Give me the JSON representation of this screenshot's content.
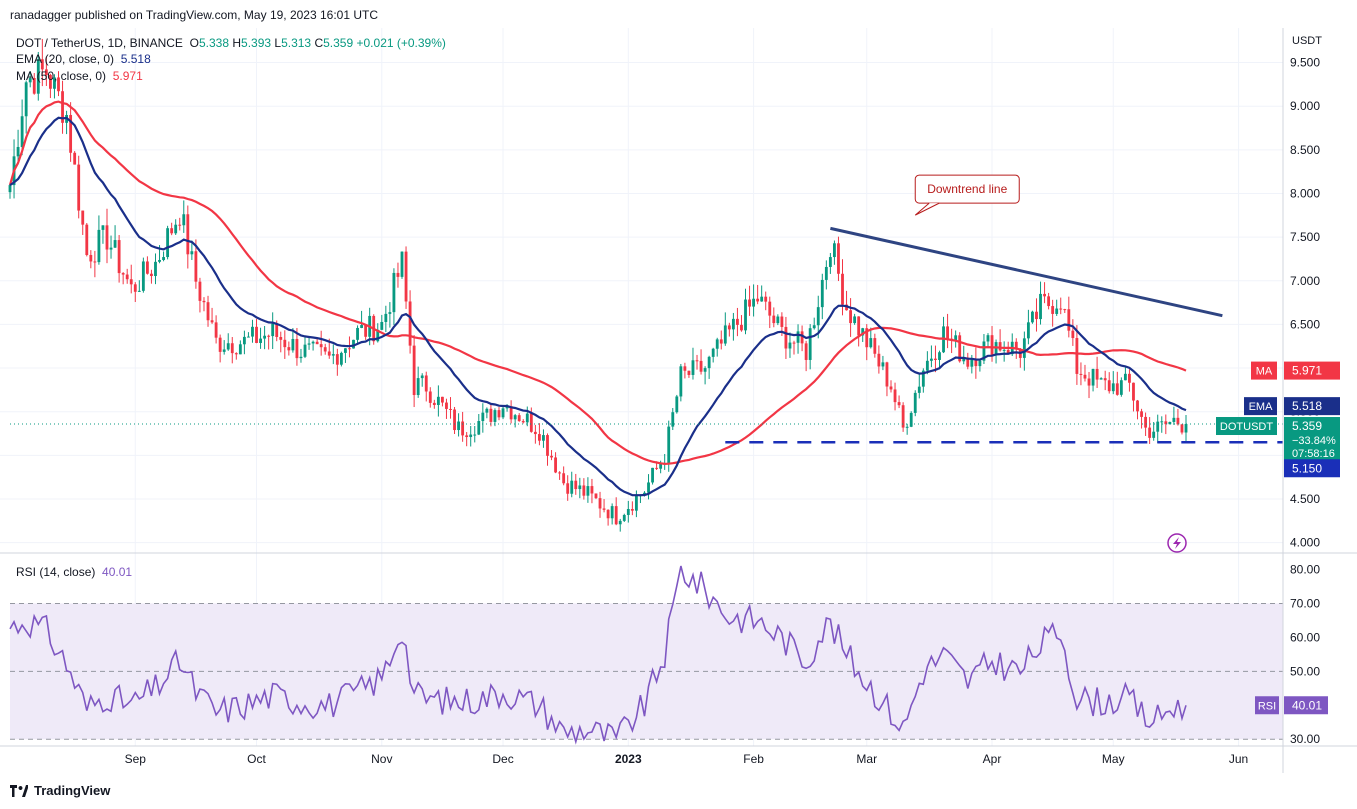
{
  "publisher": "ranadagger published on TradingView.com, May 19, 2023 16:01 UTC",
  "legend": {
    "symbol": "DOT / TetherUS, 1D, BINANCE",
    "open_label": "O",
    "open": "5.338",
    "high_label": "H",
    "high": "5.393",
    "low_label": "L",
    "low": "5.313",
    "close_label": "C",
    "close": "5.359",
    "change": "+0.021 (+0.39%)",
    "ema_label": "EMA (20, close, 0)",
    "ema_value": "5.518",
    "ma_label": "MA (50, close, 0)",
    "ma_value": "5.971",
    "rsi_label": "RSI (14, close)",
    "rsi_value": "40.01"
  },
  "footer": {
    "brand": "TradingView"
  },
  "colors": {
    "up": "#089981",
    "down": "#f23645",
    "ema": "#1a2f8a",
    "ma": "#f23645",
    "rsi": "#7e57c2",
    "rsi_band": "#efeaf8",
    "trendline": "#2e4482",
    "support": "#1a2fb8"
  },
  "chart_data": [
    {
      "type": "candlestick",
      "title": "DOT / TetherUS, 1D, BINANCE",
      "currency_label": "USDT",
      "y_ticks": [
        "4.000",
        "4.500",
        "5.000",
        "5.500",
        "6.000",
        "6.500",
        "7.000",
        "7.500",
        "8.000",
        "8.500",
        "9.000",
        "9.500"
      ],
      "ylim": [
        3.95,
        9.85
      ],
      "x_labels": [
        "Sep",
        "Oct",
        "Nov",
        "Dec",
        "2023",
        "Feb",
        "Mar",
        "Apr",
        "May",
        "Jun"
      ],
      "x_label_dates": [
        "2022-09-01",
        "2022-10-01",
        "2022-11-01",
        "2022-12-01",
        "2023-01-01",
        "2023-02-01",
        "2023-03-01",
        "2023-04-01",
        "2023-05-01",
        "2023-06-01"
      ],
      "x_start": "2022-08-01",
      "x_end": "2023-06-12",
      "series": [
        {
          "name": "EMA",
          "value": "5.518"
        },
        {
          "name": "MA",
          "value": "5.971"
        }
      ],
      "price_waypoints": [
        [
          "2022-08-01",
          8.1
        ],
        [
          "2022-08-05",
          9.3
        ],
        [
          "2022-08-10",
          9.4
        ],
        [
          "2022-08-15",
          8.9
        ],
        [
          "2022-08-20",
          7.3
        ],
        [
          "2022-08-25",
          7.5
        ],
        [
          "2022-08-31",
          6.9
        ],
        [
          "2022-09-06",
          7.2
        ],
        [
          "2022-09-12",
          7.8
        ],
        [
          "2022-09-16",
          7.0
        ],
        [
          "2022-09-21",
          6.3
        ],
        [
          "2022-09-28",
          6.3
        ],
        [
          "2022-10-05",
          6.4
        ],
        [
          "2022-10-12",
          6.2
        ],
        [
          "2022-10-19",
          6.1
        ],
        [
          "2022-10-26",
          6.4
        ],
        [
          "2022-11-01",
          6.5
        ],
        [
          "2022-11-06",
          7.2
        ],
        [
          "2022-11-09",
          5.8
        ],
        [
          "2022-11-12",
          5.8
        ],
        [
          "2022-11-20",
          5.3
        ],
        [
          "2022-11-26",
          5.4
        ],
        [
          "2022-12-01",
          5.6
        ],
        [
          "2022-12-10",
          5.3
        ],
        [
          "2022-12-16",
          4.7
        ],
        [
          "2022-12-22",
          4.55
        ],
        [
          "2022-12-29",
          4.3
        ],
        [
          "2023-01-05",
          4.6
        ],
        [
          "2023-01-10",
          5.0
        ],
        [
          "2023-01-14",
          5.9
        ],
        [
          "2023-01-20",
          6.0
        ],
        [
          "2023-01-26",
          6.4
        ],
        [
          "2023-02-02",
          6.8
        ],
        [
          "2023-02-08",
          6.4
        ],
        [
          "2023-02-14",
          6.2
        ],
        [
          "2023-02-18",
          7.0
        ],
        [
          "2023-02-20",
          7.45
        ],
        [
          "2023-02-24",
          6.7
        ],
        [
          "2023-03-01",
          6.3
        ],
        [
          "2023-03-07",
          5.8
        ],
        [
          "2023-03-10",
          5.3
        ],
        [
          "2023-03-15",
          6.0
        ],
        [
          "2023-03-20",
          6.4
        ],
        [
          "2023-03-26",
          6.1
        ],
        [
          "2023-04-01",
          6.3
        ],
        [
          "2023-04-08",
          6.2
        ],
        [
          "2023-04-13",
          6.7
        ],
        [
          "2023-04-18",
          6.8
        ],
        [
          "2023-04-22",
          6.0
        ],
        [
          "2023-04-28",
          5.8
        ],
        [
          "2023-05-05",
          5.8
        ],
        [
          "2023-05-09",
          5.3
        ],
        [
          "2023-05-12",
          5.3
        ],
        [
          "2023-05-16",
          5.4
        ],
        [
          "2023-05-19",
          5.359
        ]
      ],
      "annotations": [
        {
          "text": "Downtrend line",
          "from": [
            "2023-02-20",
            7.6
          ],
          "to": [
            "2023-05-28",
            6.6
          ]
        },
        {
          "text": "5.150",
          "kind": "horizontal support",
          "from": "2023-01-25",
          "value": 5.15
        }
      ],
      "price_badges": [
        {
          "label": "MA",
          "value": "5.971"
        },
        {
          "label": "EMA",
          "value": "5.518"
        },
        {
          "label": "DOTUSDT",
          "value": "5.359",
          "change": "−33.84%",
          "countdown": "07:58:16"
        },
        {
          "label": "",
          "value": "5.150"
        }
      ]
    },
    {
      "type": "line",
      "title": "RSI (14, close)",
      "y_ticks": [
        "30.00",
        "40.00",
        "50.00",
        "60.00",
        "70.00",
        "80.00"
      ],
      "ylim": [
        28,
        84
      ],
      "band": [
        30,
        70
      ],
      "mid": 50,
      "series": [
        {
          "name": "RSI",
          "value": "40.01"
        }
      ],
      "waypoints": [
        [
          "2022-08-01",
          63
        ],
        [
          "2022-08-05",
          65
        ],
        [
          "2022-08-10",
          62
        ],
        [
          "2022-08-15",
          52
        ],
        [
          "2022-08-20",
          39
        ],
        [
          "2022-08-25",
          43
        ],
        [
          "2022-08-31",
          40
        ],
        [
          "2022-09-06",
          45
        ],
        [
          "2022-09-12",
          53
        ],
        [
          "2022-09-16",
          44
        ],
        [
          "2022-09-21",
          38
        ],
        [
          "2022-09-28",
          40
        ],
        [
          "2022-10-05",
          43
        ],
        [
          "2022-10-12",
          41
        ],
        [
          "2022-10-19",
          40
        ],
        [
          "2022-10-26",
          44
        ],
        [
          "2022-11-01",
          48
        ],
        [
          "2022-11-06",
          63
        ],
        [
          "2022-11-09",
          43
        ],
        [
          "2022-11-12",
          42
        ],
        [
          "2022-11-20",
          41
        ],
        [
          "2022-11-26",
          42
        ],
        [
          "2022-12-01",
          44
        ],
        [
          "2022-12-10",
          40
        ],
        [
          "2022-12-16",
          32
        ],
        [
          "2022-12-22",
          33
        ],
        [
          "2022-12-29",
          30
        ],
        [
          "2023-01-05",
          40
        ],
        [
          "2023-01-10",
          55
        ],
        [
          "2023-01-14",
          80
        ],
        [
          "2023-01-20",
          74
        ],
        [
          "2023-01-26",
          66
        ],
        [
          "2023-02-02",
          65
        ],
        [
          "2023-02-08",
          60
        ],
        [
          "2023-02-14",
          53
        ],
        [
          "2023-02-18",
          62
        ],
        [
          "2023-02-20",
          64
        ],
        [
          "2023-02-24",
          55
        ],
        [
          "2023-03-01",
          47
        ],
        [
          "2023-03-07",
          38
        ],
        [
          "2023-03-10",
          33
        ],
        [
          "2023-03-15",
          50
        ],
        [
          "2023-03-20",
          55
        ],
        [
          "2023-03-26",
          47
        ],
        [
          "2023-04-01",
          53
        ],
        [
          "2023-04-08",
          50
        ],
        [
          "2023-04-13",
          58
        ],
        [
          "2023-04-18",
          62
        ],
        [
          "2023-04-22",
          42
        ],
        [
          "2023-04-28",
          41
        ],
        [
          "2023-05-05",
          42
        ],
        [
          "2023-05-09",
          36
        ],
        [
          "2023-05-12",
          36
        ],
        [
          "2023-05-16",
          40
        ],
        [
          "2023-05-19",
          40.01
        ]
      ]
    }
  ]
}
